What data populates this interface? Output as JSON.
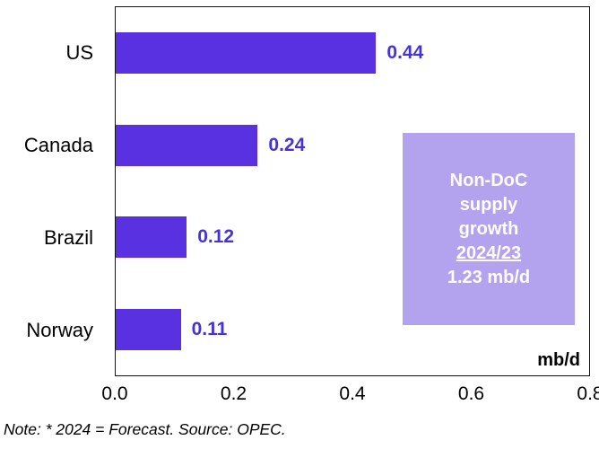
{
  "chart_data": {
    "type": "bar",
    "orientation": "horizontal",
    "categories": [
      "US",
      "Canada",
      "Brazil",
      "Norway"
    ],
    "values": [
      0.44,
      0.24,
      0.12,
      0.11
    ],
    "value_labels": [
      "0.44",
      "0.24",
      "0.12",
      "0.11"
    ],
    "xlim": [
      0,
      0.8
    ],
    "x_ticks": [
      "0.0",
      "0.2",
      "0.4",
      "0.6",
      "0.8"
    ],
    "unit_label": "mb/d",
    "bar_color": "#5a31e0",
    "value_color": "#4433dd",
    "annotation": {
      "lines": [
        "Non-DoC",
        "supply",
        "growth"
      ],
      "period": "2024/23",
      "value": "1.23 mb/d",
      "bg_color": "#b3a2ee",
      "text_color": "#ffffff"
    },
    "note": "Note: * 2024 = Forecast. Source: OPEC.",
    "grid": false,
    "legend": false,
    "title": ""
  }
}
